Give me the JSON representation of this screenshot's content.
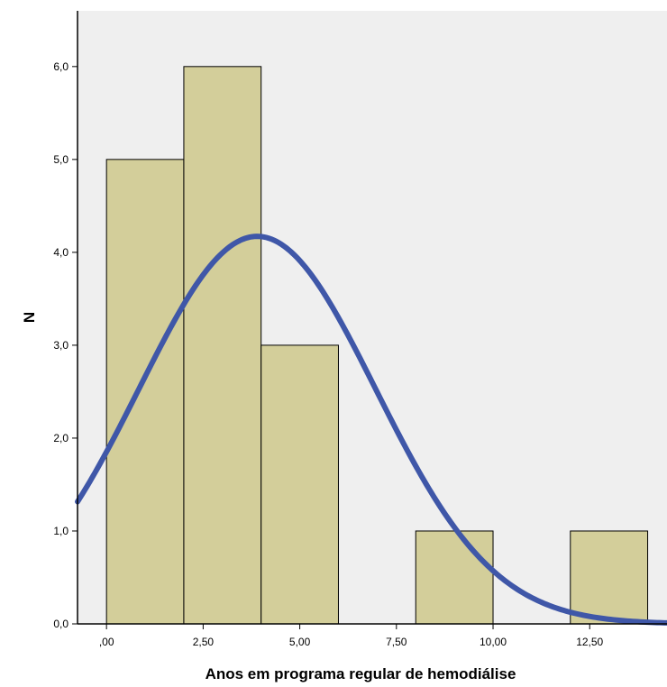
{
  "chart_data": {
    "type": "bar",
    "subtype": "histogram-with-normal-curve",
    "xlabel": "Anos em programa regular de hemodiálise",
    "ylabel": "N",
    "xlim": [
      -0.75,
      14.5
    ],
    "ylim": [
      0,
      6.6
    ],
    "x_ticks": [
      {
        "value": 0,
        "label": ",00"
      },
      {
        "value": 2.5,
        "label": "2,50"
      },
      {
        "value": 5,
        "label": "5,00"
      },
      {
        "value": 7.5,
        "label": "7,50"
      },
      {
        "value": 10,
        "label": "10,00"
      },
      {
        "value": 12.5,
        "label": "12,50"
      }
    ],
    "y_ticks": [
      {
        "value": 0,
        "label": "0,0"
      },
      {
        "value": 1,
        "label": "1,0"
      },
      {
        "value": 2,
        "label": "2,0"
      },
      {
        "value": 3,
        "label": "3,0"
      },
      {
        "value": 4,
        "label": "4,0"
      },
      {
        "value": 5,
        "label": "5,0"
      },
      {
        "value": 6,
        "label": "6,0"
      }
    ],
    "bins": [
      {
        "start": 0,
        "end": 2,
        "count": 5
      },
      {
        "start": 2,
        "end": 4,
        "count": 6
      },
      {
        "start": 4,
        "end": 6,
        "count": 3
      },
      {
        "start": 6,
        "end": 8,
        "count": 0
      },
      {
        "start": 8,
        "end": 10,
        "count": 1
      },
      {
        "start": 10,
        "end": 12,
        "count": 0
      },
      {
        "start": 12,
        "end": 14,
        "count": 1
      }
    ],
    "normal_curve": {
      "mean": 3.9,
      "sd": 3.06,
      "n": 16,
      "bin_width": 2
    },
    "grid": false,
    "colors": {
      "bar_fill": "#d3ce9a",
      "bar_stroke": "#000000",
      "plot_background": "#efefef",
      "curve": "#3f57a8"
    }
  }
}
